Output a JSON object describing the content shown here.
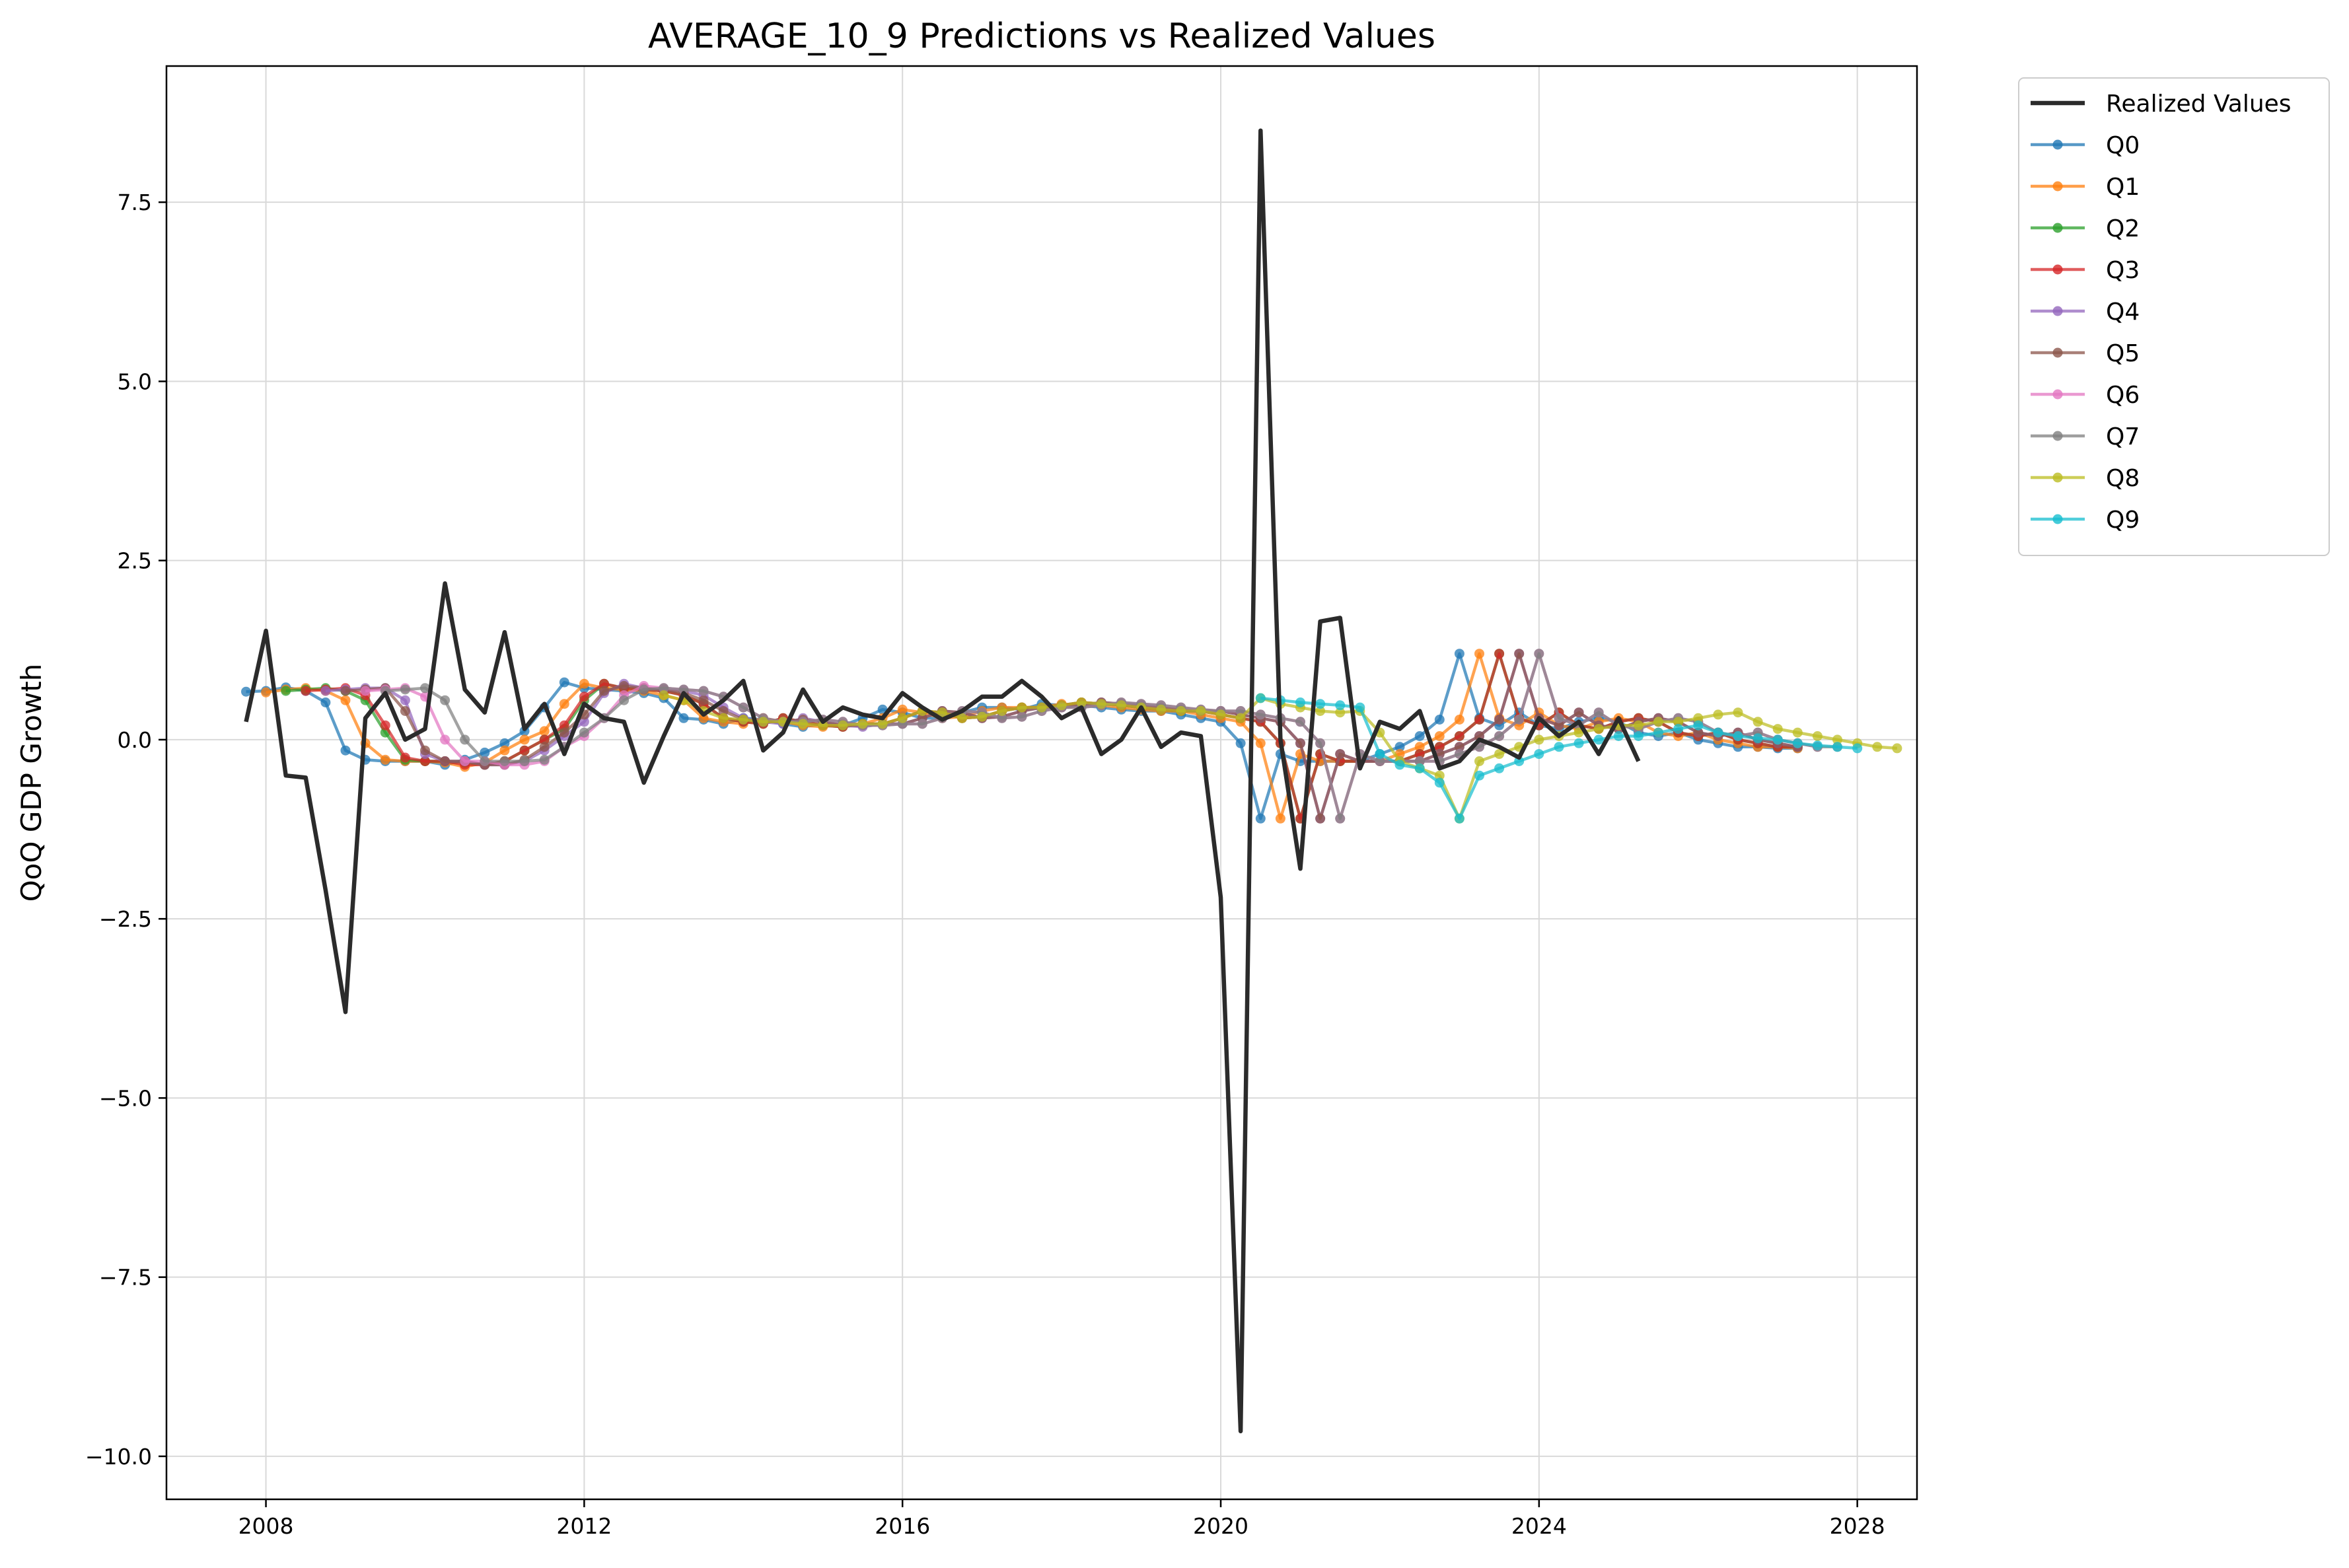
{
  "chart_data": {
    "type": "line",
    "title": "AVERAGE_10_9 Predictions vs Realized Values",
    "xlabel": "",
    "ylabel": "QoQ GDP Growth",
    "xlim": [
      2006.75,
      2028.75
    ],
    "ylim": [
      -10.6,
      9.4
    ],
    "xticks": [
      2008,
      2012,
      2016,
      2020,
      2024,
      2028
    ],
    "xtick_labels": [
      "2008",
      "2012",
      "2016",
      "2020",
      "2024",
      "2028"
    ],
    "yticks": [
      7.5,
      5.0,
      2.5,
      0.0,
      -2.5,
      -5.0,
      -7.5,
      -10.0
    ],
    "ytick_labels": [
      "7.5",
      "5.0",
      "2.5",
      "0.0",
      "−2.5",
      "−5.0",
      "−7.5",
      "−10.0"
    ],
    "grid": true,
    "legend_position": "outside-top-right",
    "realized": {
      "name": "Realized Values",
      "color": "#2b2b2b",
      "x": [
        2007.75,
        2008.0,
        2008.25,
        2008.5,
        2008.75,
        2009.0,
        2009.25,
        2009.5,
        2009.75,
        2010.0,
        2010.25,
        2010.5,
        2010.75,
        2011.0,
        2011.25,
        2011.5,
        2011.75,
        2012.0,
        2012.25,
        2012.5,
        2012.75,
        2013.0,
        2013.25,
        2013.5,
        2013.75,
        2014.0,
        2014.25,
        2014.5,
        2014.75,
        2015.0,
        2015.25,
        2015.5,
        2015.75,
        2016.0,
        2016.25,
        2016.5,
        2016.75,
        2017.0,
        2017.25,
        2017.5,
        2017.75,
        2018.0,
        2018.25,
        2018.5,
        2018.75,
        2019.0,
        2019.25,
        2019.5,
        2019.75,
        2020.0,
        2020.25,
        2020.5,
        2020.75,
        2021.0,
        2021.25,
        2021.5,
        2021.75,
        2022.0,
        2022.25,
        2022.5,
        2022.75,
        2023.0,
        2023.25,
        2023.5,
        2023.75,
        2024.0,
        2024.25,
        2024.5,
        2024.75,
        2025.0,
        2025.25
      ],
      "y": [
        0.25,
        1.52,
        -0.5,
        -0.53,
        -2.1,
        -3.8,
        0.3,
        0.65,
        0.0,
        0.15,
        2.18,
        0.7,
        0.38,
        1.5,
        0.15,
        0.5,
        -0.2,
        0.5,
        0.3,
        0.25,
        -0.6,
        0.05,
        0.65,
        0.35,
        0.55,
        0.82,
        -0.15,
        0.1,
        0.7,
        0.25,
        0.45,
        0.35,
        0.3,
        0.65,
        0.45,
        0.28,
        0.4,
        0.6,
        0.6,
        0.82,
        0.6,
        0.3,
        0.45,
        -0.2,
        0.0,
        0.45,
        -0.1,
        0.1,
        0.05,
        -2.2,
        -9.65,
        8.5,
        0.0,
        -1.8,
        1.65,
        1.7,
        -0.4,
        0.25,
        0.15,
        0.4,
        -0.4,
        -0.3,
        0.0,
        -0.1,
        -0.25,
        0.3,
        0.05,
        0.25,
        -0.2,
        0.3,
        -0.3
      ]
    },
    "series": [
      {
        "name": "Q0",
        "color": "#1f77b4",
        "start": 2007.75,
        "values": [
          0.67,
          0.68,
          0.73,
          0.68,
          0.52,
          -0.15,
          -0.28,
          -0.3,
          -0.3,
          -0.3,
          -0.35,
          -0.28,
          -0.18,
          -0.05,
          0.12,
          0.45,
          0.8,
          0.72,
          0.7,
          0.68,
          0.65,
          0.58,
          0.3,
          0.28,
          0.22,
          0.3,
          0.28,
          0.22,
          0.18,
          0.22,
          0.2,
          0.3,
          0.42,
          0.38,
          0.3,
          0.3,
          0.38,
          0.45,
          0.45,
          0.42,
          0.5,
          0.48,
          0.48,
          0.45,
          0.42,
          0.4,
          0.4,
          0.35,
          0.3,
          0.25,
          -0.05,
          -1.1,
          -0.2,
          -0.3,
          -0.3,
          -0.3,
          -0.3,
          -0.2,
          -0.1,
          0.05,
          0.28,
          1.2,
          0.3,
          0.2,
          0.38,
          0.2,
          0.15,
          0.25,
          0.3,
          0.25,
          0.1,
          0.05,
          0.1,
          0.0,
          -0.05,
          -0.1,
          -0.1,
          -0.12,
          -0.12
        ]
      },
      {
        "name": "Q1",
        "color": "#ff7f0e",
        "start": 2008.0,
        "values": [
          0.66,
          0.7,
          0.72,
          0.68,
          0.55,
          -0.05,
          -0.28,
          -0.3,
          -0.3,
          -0.32,
          -0.38,
          -0.32,
          -0.15,
          0.0,
          0.12,
          0.5,
          0.78,
          0.72,
          0.7,
          0.68,
          0.62,
          0.55,
          0.3,
          0.25,
          0.22,
          0.3,
          0.25,
          0.2,
          0.18,
          0.22,
          0.22,
          0.3,
          0.42,
          0.38,
          0.3,
          0.32,
          0.4,
          0.45,
          0.45,
          0.45,
          0.5,
          0.48,
          0.48,
          0.45,
          0.42,
          0.4,
          0.4,
          0.35,
          0.3,
          0.25,
          -0.05,
          -1.1,
          -0.2,
          -0.3,
          -0.3,
          -0.3,
          -0.3,
          -0.2,
          -0.1,
          0.05,
          0.28,
          1.2,
          0.3,
          0.2,
          0.38,
          0.2,
          0.15,
          0.25,
          0.3,
          0.25,
          0.1,
          0.05,
          0.1,
          0.0,
          -0.05,
          -0.1,
          -0.1,
          -0.12
        ]
      },
      {
        "name": "Q2",
        "color": "#2ca02c",
        "start": 2008.25,
        "values": [
          0.68,
          0.7,
          0.72,
          0.68,
          0.55,
          0.1,
          -0.28,
          -0.3,
          -0.3,
          -0.32,
          -0.35,
          -0.3,
          -0.15,
          0.0,
          0.15,
          0.55,
          0.78,
          0.72,
          0.7,
          0.68,
          0.62,
          0.5,
          0.3,
          0.25,
          0.22,
          0.3,
          0.25,
          0.2,
          0.18,
          0.22,
          0.22,
          0.3,
          0.4,
          0.38,
          0.3,
          0.32,
          0.4,
          0.45,
          0.45,
          0.48,
          0.52,
          0.5,
          0.48,
          0.45,
          0.42,
          0.4,
          0.4,
          0.35,
          0.3,
          0.25,
          -0.05,
          -1.1,
          -0.2,
          -0.3,
          -0.3,
          -0.3,
          -0.3,
          -0.2,
          -0.1,
          0.05,
          0.28,
          1.2,
          0.3,
          0.2,
          0.38,
          0.2,
          0.15,
          0.25,
          0.3,
          0.25,
          0.1,
          0.05,
          0.1,
          0.0,
          -0.05,
          -0.1,
          -0.1
        ]
      },
      {
        "name": "Q3",
        "color": "#d62728",
        "start": 2008.5,
        "values": [
          0.68,
          0.7,
          0.72,
          0.62,
          0.2,
          -0.25,
          -0.3,
          -0.3,
          -0.35,
          -0.35,
          -0.3,
          -0.15,
          0.0,
          0.2,
          0.6,
          0.78,
          0.72,
          0.7,
          0.68,
          0.62,
          0.5,
          0.3,
          0.25,
          0.22,
          0.3,
          0.25,
          0.2,
          0.18,
          0.22,
          0.22,
          0.3,
          0.4,
          0.38,
          0.3,
          0.32,
          0.4,
          0.45,
          0.45,
          0.48,
          0.52,
          0.5,
          0.48,
          0.45,
          0.42,
          0.4,
          0.4,
          0.35,
          0.3,
          0.25,
          -0.05,
          -1.1,
          -0.2,
          -0.3,
          -0.3,
          -0.3,
          -0.3,
          -0.2,
          -0.1,
          0.05,
          0.28,
          1.2,
          0.3,
          0.2,
          0.38,
          0.2,
          0.15,
          0.25,
          0.3,
          0.25,
          0.1,
          0.05,
          0.1,
          0.0,
          -0.05,
          -0.1,
          -0.1
        ]
      },
      {
        "name": "Q4",
        "color": "#9467bd",
        "start": 2008.75,
        "values": [
          0.68,
          0.7,
          0.72,
          0.72,
          0.55,
          -0.2,
          -0.3,
          -0.3,
          -0.35,
          -0.35,
          -0.3,
          -0.15,
          0.05,
          0.25,
          0.65,
          0.78,
          0.72,
          0.7,
          0.68,
          0.62,
          0.45,
          0.3,
          0.25,
          0.22,
          0.3,
          0.25,
          0.2,
          0.18,
          0.22,
          0.22,
          0.3,
          0.4,
          0.38,
          0.3,
          0.32,
          0.4,
          0.45,
          0.45,
          0.48,
          0.52,
          0.5,
          0.48,
          0.45,
          0.42,
          0.4,
          0.4,
          0.35,
          0.3,
          0.25,
          -0.05,
          -1.1,
          -0.2,
          -0.3,
          -0.3,
          -0.3,
          -0.3,
          -0.2,
          -0.1,
          0.05,
          0.28,
          1.2,
          0.3,
          0.2,
          0.38,
          0.2,
          0.15,
          0.25,
          0.3,
          0.25,
          0.1,
          0.05,
          0.1,
          0.0,
          -0.05,
          -0.1
        ]
      },
      {
        "name": "Q5",
        "color": "#8c564b",
        "start": 2009.0,
        "values": [
          0.68,
          0.7,
          0.72,
          0.4,
          -0.15,
          -0.3,
          -0.3,
          -0.35,
          -0.35,
          -0.28,
          -0.1,
          0.1,
          0.35,
          0.68,
          0.75,
          0.72,
          0.7,
          0.65,
          0.55,
          0.4,
          0.28,
          0.25,
          0.25,
          0.28,
          0.25,
          0.2,
          0.2,
          0.22,
          0.22,
          0.3,
          0.4,
          0.38,
          0.3,
          0.32,
          0.4,
          0.45,
          0.45,
          0.48,
          0.52,
          0.5,
          0.48,
          0.45,
          0.42,
          0.4,
          0.4,
          0.35,
          0.3,
          0.25,
          -0.05,
          -1.1,
          -0.2,
          -0.3,
          -0.3,
          -0.3,
          -0.3,
          -0.2,
          -0.1,
          0.05,
          0.28,
          1.2,
          0.3,
          0.2,
          0.38,
          0.2,
          0.15,
          0.25,
          0.3,
          0.25,
          0.1,
          0.05,
          0.1,
          0.0,
          -0.05,
          -0.1
        ]
      },
      {
        "name": "Q6",
        "color": "#e377c2",
        "start": 2009.25,
        "values": [
          0.68,
          0.7,
          0.72,
          0.6,
          0.0,
          -0.3,
          -0.3,
          -0.35,
          -0.35,
          -0.3,
          -0.1,
          0.05,
          0.3,
          0.62,
          0.75,
          0.72,
          0.7,
          0.68,
          0.6,
          0.45,
          0.3,
          0.25,
          0.25,
          0.28,
          0.25,
          0.2,
          0.2,
          0.22,
          0.22,
          0.3,
          0.4,
          0.38,
          0.3,
          0.32,
          0.4,
          0.45,
          0.45,
          0.48,
          0.52,
          0.5,
          0.48,
          0.45,
          0.42,
          0.4,
          0.4,
          0.35,
          0.3,
          0.25,
          -0.05,
          -1.1,
          -0.2,
          -0.3,
          -0.3,
          -0.3,
          -0.3,
          -0.2,
          -0.1,
          0.05,
          0.28,
          1.2,
          0.3,
          0.2,
          0.38,
          0.2,
          0.15,
          0.25,
          0.3,
          0.25,
          0.1,
          0.05,
          0.1,
          0.0,
          -0.05,
          -0.1
        ]
      },
      {
        "name": "Q7",
        "color": "#7f7f7f",
        "start": 2009.5,
        "values": [
          0.68,
          0.7,
          0.72,
          0.55,
          0.0,
          -0.3,
          -0.3,
          -0.3,
          -0.28,
          -0.1,
          0.1,
          0.3,
          0.55,
          0.7,
          0.72,
          0.7,
          0.68,
          0.6,
          0.45,
          0.3,
          0.25,
          0.25,
          0.28,
          0.25,
          0.2,
          0.2,
          0.22,
          0.22,
          0.3,
          0.4,
          0.38,
          0.3,
          0.32,
          0.4,
          0.45,
          0.45,
          0.48,
          0.52,
          0.5,
          0.48,
          0.45,
          0.42,
          0.4,
          0.4,
          0.35,
          0.3,
          0.25,
          -0.05,
          -1.1,
          -0.2,
          -0.3,
          -0.3,
          -0.3,
          -0.3,
          -0.2,
          -0.1,
          0.05,
          0.28,
          1.2,
          0.3,
          0.2,
          0.38,
          0.2,
          0.15,
          0.25,
          0.3,
          0.25,
          0.1,
          0.05,
          0.1,
          0.0,
          -0.05,
          -0.1,
          -0.1
        ]
      },
      {
        "name": "Q8",
        "color": "#bcbd22",
        "start": 2013.0,
        "values": [
          0.62,
          0.55,
          0.4,
          0.3,
          0.28,
          0.25,
          0.25,
          0.22,
          0.2,
          0.2,
          0.22,
          0.22,
          0.3,
          0.4,
          0.38,
          0.3,
          0.32,
          0.4,
          0.45,
          0.45,
          0.48,
          0.52,
          0.5,
          0.48,
          0.45,
          0.42,
          0.4,
          0.4,
          0.35,
          0.3,
          0.58,
          0.5,
          0.45,
          0.4,
          0.38,
          0.4,
          0.1,
          -0.3,
          -0.4,
          -0.5,
          -1.1,
          -0.3,
          -0.2,
          -0.1,
          0.0,
          0.05,
          0.1,
          0.15,
          0.2,
          0.2,
          0.25,
          0.25,
          0.3,
          0.35,
          0.38,
          0.25,
          0.15,
          0.1,
          0.05,
          0.0,
          -0.05,
          -0.1,
          -0.12
        ]
      },
      {
        "name": "Q9",
        "color": "#17becf",
        "start": 2020.5,
        "values": [
          0.58,
          0.55,
          0.52,
          0.5,
          0.48,
          0.45,
          -0.2,
          -0.35,
          -0.4,
          -0.6,
          -1.1,
          -0.5,
          -0.4,
          -0.3,
          -0.2,
          -0.1,
          -0.05,
          0.0,
          0.05,
          0.05,
          0.1,
          0.15,
          0.2,
          0.1,
          0.05,
          0.02,
          0.0,
          -0.05,
          -0.08,
          -0.1,
          -0.12
        ]
      }
    ]
  }
}
